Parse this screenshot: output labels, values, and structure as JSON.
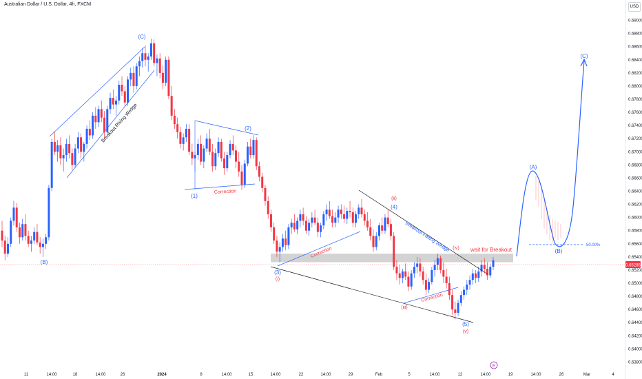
{
  "header": {
    "title": "Australian Dollar / U.S. Dollar, 4h, FXCM",
    "currency": "USD"
  },
  "colors": {
    "up": "#2962ff",
    "down": "#f23645",
    "wave": "#2962ff",
    "annotation_red": "#f23645",
    "trendline": "#131722",
    "zone": "#9e9e9e"
  },
  "chart_data": {
    "type": "candlestick",
    "symbol": "AUDUSD",
    "timeframe": "4h",
    "source": "FXCM",
    "ylim": [
      0.637,
      0.691
    ],
    "y_ticks": [
      "0.69000",
      "0.68800",
      "0.68600",
      "0.68400",
      "0.68200",
      "0.68000",
      "0.67800",
      "0.67600",
      "0.67400",
      "0.67200",
      "0.67000",
      "0.66800",
      "0.66600",
      "0.66400",
      "0.66200",
      "0.66000",
      "0.65800",
      "0.65600",
      "0.65400",
      "0.65200",
      "0.65000",
      "0.64800",
      "0.64600",
      "0.64400",
      "0.64200",
      "0.64000",
      "0.63800"
    ],
    "x_ticks": [
      "11",
      "14:00",
      "18",
      "14:00",
      "26",
      "2024",
      "8",
      "14:00",
      "15",
      "14:00",
      "22",
      "14:00",
      "29",
      "Feb",
      "5",
      "14:00",
      "12",
      "14:00",
      "19",
      "14:00",
      "26",
      "Mar",
      "4"
    ],
    "current_price": "0.65285",
    "candles": [
      [
        0.658,
        0.6595,
        0.6555,
        0.6565
      ],
      [
        0.6565,
        0.6572,
        0.6535,
        0.6545
      ],
      [
        0.6545,
        0.657,
        0.654,
        0.656
      ],
      [
        0.656,
        0.66,
        0.6555,
        0.6595
      ],
      [
        0.6595,
        0.6625,
        0.6588,
        0.6615
      ],
      [
        0.6615,
        0.6622,
        0.6578,
        0.6585
      ],
      [
        0.6585,
        0.6592,
        0.656,
        0.657
      ],
      [
        0.657,
        0.6598,
        0.6565,
        0.659
      ],
      [
        0.659,
        0.6605,
        0.6565,
        0.6572
      ],
      [
        0.6572,
        0.658,
        0.6555,
        0.656
      ],
      [
        0.656,
        0.6572,
        0.6548,
        0.6565
      ],
      [
        0.6565,
        0.6585,
        0.656,
        0.6578
      ],
      [
        0.6578,
        0.659,
        0.6558,
        0.6562
      ],
      [
        0.6562,
        0.657,
        0.6545,
        0.6555
      ],
      [
        0.6555,
        0.6568,
        0.654,
        0.656
      ],
      [
        0.656,
        0.6575,
        0.6552,
        0.657
      ],
      [
        0.657,
        0.665,
        0.6565,
        0.6645
      ],
      [
        0.6645,
        0.672,
        0.664,
        0.6715
      ],
      [
        0.6715,
        0.673,
        0.6695,
        0.67
      ],
      [
        0.67,
        0.6718,
        0.6685,
        0.671
      ],
      [
        0.671,
        0.6722,
        0.668,
        0.669
      ],
      [
        0.669,
        0.6705,
        0.667,
        0.6695
      ],
      [
        0.6695,
        0.672,
        0.6685,
        0.6712
      ],
      [
        0.6712,
        0.6725,
        0.669,
        0.6698
      ],
      [
        0.6698,
        0.6705,
        0.6672,
        0.668
      ],
      [
        0.668,
        0.6712,
        0.6676,
        0.6705
      ],
      [
        0.6705,
        0.673,
        0.6698,
        0.6722
      ],
      [
        0.6722,
        0.6728,
        0.669,
        0.67
      ],
      [
        0.67,
        0.6715,
        0.6685,
        0.6712
      ],
      [
        0.6712,
        0.674,
        0.6705,
        0.6735
      ],
      [
        0.6735,
        0.6748,
        0.6718,
        0.6725
      ],
      [
        0.6725,
        0.676,
        0.672,
        0.6755
      ],
      [
        0.6755,
        0.6768,
        0.6735,
        0.6745
      ],
      [
        0.6745,
        0.677,
        0.6738,
        0.6765
      ],
      [
        0.6765,
        0.6778,
        0.6745,
        0.6752
      ],
      [
        0.6752,
        0.6762,
        0.672,
        0.673
      ],
      [
        0.673,
        0.677,
        0.6725,
        0.6765
      ],
      [
        0.6765,
        0.679,
        0.6758,
        0.6782
      ],
      [
        0.6782,
        0.6795,
        0.6765,
        0.6772
      ],
      [
        0.6772,
        0.6785,
        0.6755,
        0.6778
      ],
      [
        0.6778,
        0.6808,
        0.6772,
        0.6802
      ],
      [
        0.6802,
        0.6815,
        0.6785,
        0.6792
      ],
      [
        0.6792,
        0.68,
        0.6768,
        0.6775
      ],
      [
        0.6775,
        0.6815,
        0.677,
        0.681
      ],
      [
        0.681,
        0.6828,
        0.68,
        0.682
      ],
      [
        0.682,
        0.683,
        0.679,
        0.68
      ],
      [
        0.68,
        0.6835,
        0.6795,
        0.683
      ],
      [
        0.683,
        0.6845,
        0.6815,
        0.6838
      ],
      [
        0.6838,
        0.6858,
        0.6828,
        0.685
      ],
      [
        0.685,
        0.6862,
        0.683,
        0.684
      ],
      [
        0.684,
        0.685,
        0.6822,
        0.6845
      ],
      [
        0.6845,
        0.6872,
        0.684,
        0.6865
      ],
      [
        0.6865,
        0.6871,
        0.683,
        0.6835
      ],
      [
        0.6835,
        0.6848,
        0.6815,
        0.6842
      ],
      [
        0.6842,
        0.685,
        0.6812,
        0.682
      ],
      [
        0.682,
        0.6832,
        0.6795,
        0.6805
      ],
      [
        0.6805,
        0.6845,
        0.68,
        0.684
      ],
      [
        0.684,
        0.6845,
        0.678,
        0.6785
      ],
      [
        0.6785,
        0.68,
        0.6748,
        0.6755
      ],
      [
        0.6755,
        0.6765,
        0.6735,
        0.6742
      ],
      [
        0.6742,
        0.6752,
        0.672,
        0.673
      ],
      [
        0.673,
        0.6738,
        0.6705,
        0.6712
      ],
      [
        0.6712,
        0.6728,
        0.6702,
        0.6722
      ],
      [
        0.6722,
        0.6742,
        0.6715,
        0.6735
      ],
      [
        0.6735,
        0.6742,
        0.6695,
        0.67
      ],
      [
        0.67,
        0.6712,
        0.668,
        0.669
      ],
      [
        0.669,
        0.67,
        0.667,
        0.6695
      ],
      [
        0.6695,
        0.672,
        0.6688,
        0.6712
      ],
      [
        0.6712,
        0.6725,
        0.668,
        0.6685
      ],
      [
        0.6685,
        0.671,
        0.6675,
        0.6705
      ],
      [
        0.6705,
        0.6728,
        0.67,
        0.672
      ],
      [
        0.672,
        0.6735,
        0.6695,
        0.67
      ],
      [
        0.67,
        0.6712,
        0.667,
        0.6678
      ],
      [
        0.6678,
        0.6705,
        0.6672,
        0.6698
      ],
      [
        0.6698,
        0.6722,
        0.6692,
        0.6715
      ],
      [
        0.6715,
        0.672,
        0.6685,
        0.669
      ],
      [
        0.669,
        0.67,
        0.6665,
        0.6675
      ],
      [
        0.6675,
        0.67,
        0.667,
        0.6695
      ],
      [
        0.6695,
        0.6718,
        0.669,
        0.6712
      ],
      [
        0.6712,
        0.6725,
        0.6695,
        0.6702
      ],
      [
        0.6702,
        0.671,
        0.6675,
        0.6685
      ],
      [
        0.6685,
        0.67,
        0.6662,
        0.667
      ],
      [
        0.667,
        0.668,
        0.6642,
        0.665
      ],
      [
        0.665,
        0.6688,
        0.6645,
        0.6682
      ],
      [
        0.6682,
        0.6715,
        0.6678,
        0.6708
      ],
      [
        0.6708,
        0.672,
        0.669,
        0.6695
      ],
      [
        0.6695,
        0.6725,
        0.669,
        0.6718
      ],
      [
        0.6718,
        0.6722,
        0.6672,
        0.6678
      ],
      [
        0.6678,
        0.6685,
        0.6655,
        0.6662
      ],
      [
        0.6662,
        0.6668,
        0.6638,
        0.6645
      ],
      [
        0.6645,
        0.665,
        0.6618,
        0.6625
      ],
      [
        0.6625,
        0.6632,
        0.6598,
        0.6605
      ],
      [
        0.6605,
        0.6612,
        0.6578,
        0.6585
      ],
      [
        0.6585,
        0.6592,
        0.656,
        0.6565
      ],
      [
        0.6565,
        0.6572,
        0.654,
        0.6548
      ],
      [
        0.6548,
        0.6562,
        0.6532,
        0.6555
      ],
      [
        0.6555,
        0.6575,
        0.6548,
        0.6568
      ],
      [
        0.6568,
        0.658,
        0.655,
        0.6558
      ],
      [
        0.6558,
        0.659,
        0.6552,
        0.6585
      ],
      [
        0.6585,
        0.6598,
        0.6575,
        0.6592
      ],
      [
        0.6592,
        0.6605,
        0.6578,
        0.6582
      ],
      [
        0.6582,
        0.66,
        0.6575,
        0.6595
      ],
      [
        0.6595,
        0.6612,
        0.6585,
        0.6605
      ],
      [
        0.6605,
        0.6615,
        0.6588,
        0.6595
      ],
      [
        0.6595,
        0.6602,
        0.6575,
        0.658
      ],
      [
        0.658,
        0.6598,
        0.6572,
        0.6592
      ],
      [
        0.6592,
        0.6608,
        0.6585,
        0.66
      ],
      [
        0.66,
        0.6612,
        0.6588,
        0.6592
      ],
      [
        0.6592,
        0.66,
        0.657,
        0.6578
      ],
      [
        0.6578,
        0.6592,
        0.657,
        0.6588
      ],
      [
        0.6588,
        0.661,
        0.6582,
        0.6605
      ],
      [
        0.6605,
        0.662,
        0.6595,
        0.6612
      ],
      [
        0.6612,
        0.6625,
        0.6598,
        0.6602
      ],
      [
        0.6602,
        0.6612,
        0.6585,
        0.6592
      ],
      [
        0.6592,
        0.6608,
        0.6585,
        0.66
      ],
      [
        0.66,
        0.6618,
        0.6592,
        0.6612
      ],
      [
        0.6612,
        0.662,
        0.6598,
        0.6605
      ],
      [
        0.6605,
        0.6618,
        0.6592,
        0.6598
      ],
      [
        0.6598,
        0.6615,
        0.659,
        0.661
      ],
      [
        0.661,
        0.6625,
        0.66,
        0.6608
      ],
      [
        0.6608,
        0.6615,
        0.6585,
        0.6592
      ],
      [
        0.6592,
        0.661,
        0.6585,
        0.6605
      ],
      [
        0.6605,
        0.662,
        0.6598,
        0.6615
      ],
      [
        0.6615,
        0.6628,
        0.66,
        0.6605
      ],
      [
        0.6605,
        0.6612,
        0.6588,
        0.6595
      ],
      [
        0.6595,
        0.6608,
        0.658,
        0.6585
      ],
      [
        0.6585,
        0.6598,
        0.6565,
        0.6572
      ],
      [
        0.6572,
        0.6582,
        0.6548,
        0.6555
      ],
      [
        0.6555,
        0.6578,
        0.655,
        0.6572
      ],
      [
        0.6572,
        0.6592,
        0.6565,
        0.6588
      ],
      [
        0.6588,
        0.66,
        0.6575,
        0.658
      ],
      [
        0.658,
        0.6605,
        0.6575,
        0.66
      ],
      [
        0.66,
        0.6612,
        0.6585,
        0.659
      ],
      [
        0.659,
        0.6598,
        0.6565,
        0.6572
      ],
      [
        0.6572,
        0.6578,
        0.652,
        0.6525
      ],
      [
        0.6525,
        0.6535,
        0.6505,
        0.6515
      ],
      [
        0.6515,
        0.6528,
        0.6498,
        0.6508
      ],
      [
        0.6508,
        0.6522,
        0.65,
        0.6518
      ],
      [
        0.6518,
        0.653,
        0.6505,
        0.651
      ],
      [
        0.651,
        0.6518,
        0.6488,
        0.6495
      ],
      [
        0.6495,
        0.652,
        0.649,
        0.6515
      ],
      [
        0.6515,
        0.6532,
        0.6508,
        0.6525
      ],
      [
        0.6525,
        0.654,
        0.6515,
        0.653
      ],
      [
        0.653,
        0.6538,
        0.651,
        0.6518
      ],
      [
        0.6518,
        0.6525,
        0.6498,
        0.6505
      ],
      [
        0.6505,
        0.6515,
        0.6482,
        0.649
      ],
      [
        0.649,
        0.6508,
        0.6485,
        0.6502
      ],
      [
        0.6502,
        0.6525,
        0.6498,
        0.652
      ],
      [
        0.652,
        0.6535,
        0.651,
        0.6528
      ],
      [
        0.6528,
        0.6545,
        0.652,
        0.6538
      ],
      [
        0.6538,
        0.6542,
        0.6515,
        0.652
      ],
      [
        0.652,
        0.6532,
        0.65,
        0.651
      ],
      [
        0.651,
        0.6522,
        0.6492,
        0.65
      ],
      [
        0.65,
        0.651,
        0.6475,
        0.6482
      ],
      [
        0.6482,
        0.649,
        0.6452,
        0.646
      ],
      [
        0.646,
        0.6472,
        0.6445,
        0.6455
      ],
      [
        0.6455,
        0.6475,
        0.645,
        0.647
      ],
      [
        0.647,
        0.6488,
        0.6465,
        0.6482
      ],
      [
        0.6482,
        0.6495,
        0.6475,
        0.649
      ],
      [
        0.649,
        0.6505,
        0.6482,
        0.6498
      ],
      [
        0.6498,
        0.6512,
        0.649,
        0.6505
      ],
      [
        0.6505,
        0.6522,
        0.6498,
        0.6515
      ],
      [
        0.6515,
        0.652,
        0.65,
        0.6508
      ],
      [
        0.6508,
        0.6525,
        0.6502,
        0.6518
      ],
      [
        0.6518,
        0.6535,
        0.651,
        0.6528
      ],
      [
        0.6528,
        0.6538,
        0.6515,
        0.6522
      ],
      [
        0.6522,
        0.6532,
        0.6505,
        0.6512
      ],
      [
        0.6512,
        0.653,
        0.6508,
        0.6525
      ],
      [
        0.6525,
        0.654,
        0.652,
        0.6535
      ]
    ],
    "projection": {
      "color": "#2962ff",
      "path": [
        {
          "t": 0.0,
          "price": 0.6535
        },
        {
          "t": 0.25,
          "price": 0.6668
        },
        {
          "t": 0.55,
          "price": 0.6557
        },
        {
          "t": 1.0,
          "price": 0.6845
        }
      ],
      "fib_label": "50.00%"
    },
    "annotations": {
      "wave_C_top": "(C)",
      "wave_B_low": "(B)",
      "wave_1": "(1)",
      "wave_2": "(2)",
      "wave_3": "(3)",
      "wave_4": "(4)",
      "wave_5": "(5)",
      "wave_i": "(i)",
      "wave_ii": "(ii)",
      "wave_iii": "(iii)",
      "wave_iv": "(iv)",
      "wave_v": "(v)",
      "proj_A": "(A)",
      "proj_B": "(B)",
      "proj_C": "(C)",
      "rising_wedge": "Breakout Rising Wedge",
      "falling_wedge": "Breakout Falling Wedge",
      "correction_1": "Correction",
      "correction_2": "Correction",
      "correction_3": "Correction",
      "wait": "wait for Breakout",
      "fib": "50.00%",
      "price_badge": "0.65285",
      "event_marker": "E"
    }
  }
}
